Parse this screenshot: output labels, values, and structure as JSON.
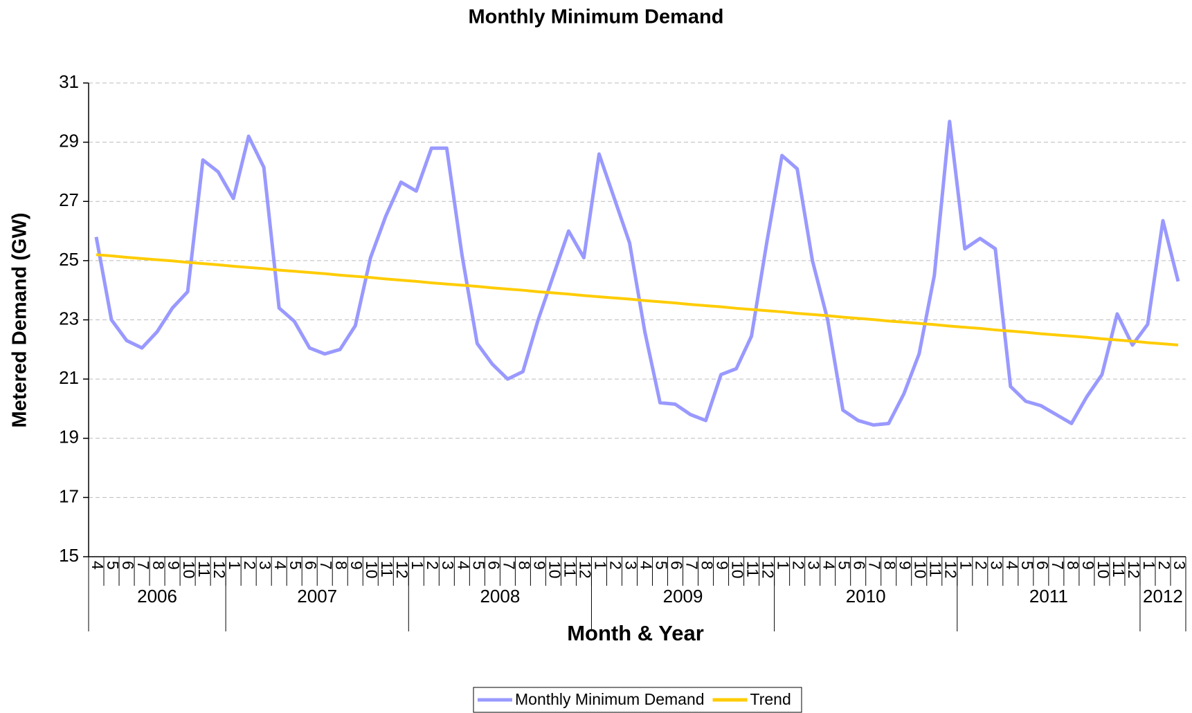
{
  "chart_data": {
    "type": "line",
    "title": "Monthly Minimum Demand",
    "x_label": "Month & Year",
    "y_label": "Metered Demand (GW)",
    "categories": [
      "4",
      "5",
      "6",
      "7",
      "8",
      "9",
      "10",
      "11",
      "12",
      "1",
      "2",
      "3",
      "4",
      "5",
      "6",
      "7",
      "8",
      "9",
      "10",
      "11",
      "12",
      "1",
      "2",
      "3",
      "4",
      "5",
      "6",
      "7",
      "8",
      "9",
      "10",
      "11",
      "12",
      "1",
      "2",
      "3",
      "4",
      "5",
      "6",
      "7",
      "8",
      "9",
      "10",
      "11",
      "12",
      "1",
      "2",
      "3",
      "4",
      "5",
      "6",
      "7",
      "8",
      "9",
      "10",
      "11",
      "12",
      "1",
      "2",
      "3",
      "4",
      "5",
      "6",
      "7",
      "8",
      "9",
      "10",
      "11",
      "12",
      "1",
      "2",
      "3"
    ],
    "x_group_labels": [
      "2006",
      "2007",
      "2008",
      "2009",
      "2010",
      "2011",
      "2012"
    ],
    "series": [
      {
        "name": "Monthly Minimum Demand",
        "color": "#9999ff",
        "values": [
          25.8,
          23.0,
          22.3,
          22.05,
          22.6,
          23.4,
          23.95,
          28.4,
          28.0,
          27.1,
          29.2,
          28.15,
          23.4,
          22.95,
          22.05,
          21.85,
          22.0,
          22.8,
          25.1,
          26.5,
          27.65,
          27.35,
          28.8,
          28.8,
          25.2,
          22.2,
          21.5,
          21.0,
          21.25,
          23.0,
          24.5,
          26.0,
          25.1,
          28.6,
          27.1,
          25.6,
          22.6,
          20.2,
          20.15,
          19.8,
          19.6,
          21.15,
          21.35,
          22.45,
          25.6,
          28.55,
          28.1,
          25.0,
          23.0,
          19.95,
          19.6,
          19.45,
          19.5,
          20.5,
          21.85,
          24.5,
          29.7,
          25.4,
          25.75,
          25.4,
          20.75,
          20.25,
          20.1,
          19.8,
          19.5,
          20.4,
          21.15,
          23.2,
          22.15,
          22.85,
          26.35,
          24.3
        ]
      },
      {
        "name": "Trend",
        "color": "#ffcc00",
        "values": [
          25.2,
          25.16,
          25.11,
          25.07,
          25.03,
          24.99,
          24.94,
          24.9,
          24.86,
          24.81,
          24.77,
          24.73,
          24.68,
          24.64,
          24.6,
          24.56,
          24.51,
          24.47,
          24.43,
          24.38,
          24.34,
          24.3,
          24.25,
          24.21,
          24.17,
          24.13,
          24.08,
          24.04,
          24.0,
          23.95,
          23.91,
          23.87,
          23.82,
          23.78,
          23.74,
          23.7,
          23.65,
          23.61,
          23.57,
          23.52,
          23.48,
          23.44,
          23.39,
          23.35,
          23.31,
          23.27,
          23.22,
          23.18,
          23.14,
          23.09,
          23.05,
          23.01,
          22.96,
          22.92,
          22.88,
          22.84,
          22.79,
          22.75,
          22.71,
          22.66,
          22.62,
          22.58,
          22.53,
          22.49,
          22.45,
          22.41,
          22.36,
          22.32,
          22.28,
          22.23,
          22.19,
          22.15
        ]
      }
    ],
    "ylim": [
      15,
      31
    ],
    "yticks": [
      15,
      17,
      19,
      21,
      23,
      25,
      27,
      29,
      31
    ],
    "grid": true,
    "legend": "bottom"
  }
}
